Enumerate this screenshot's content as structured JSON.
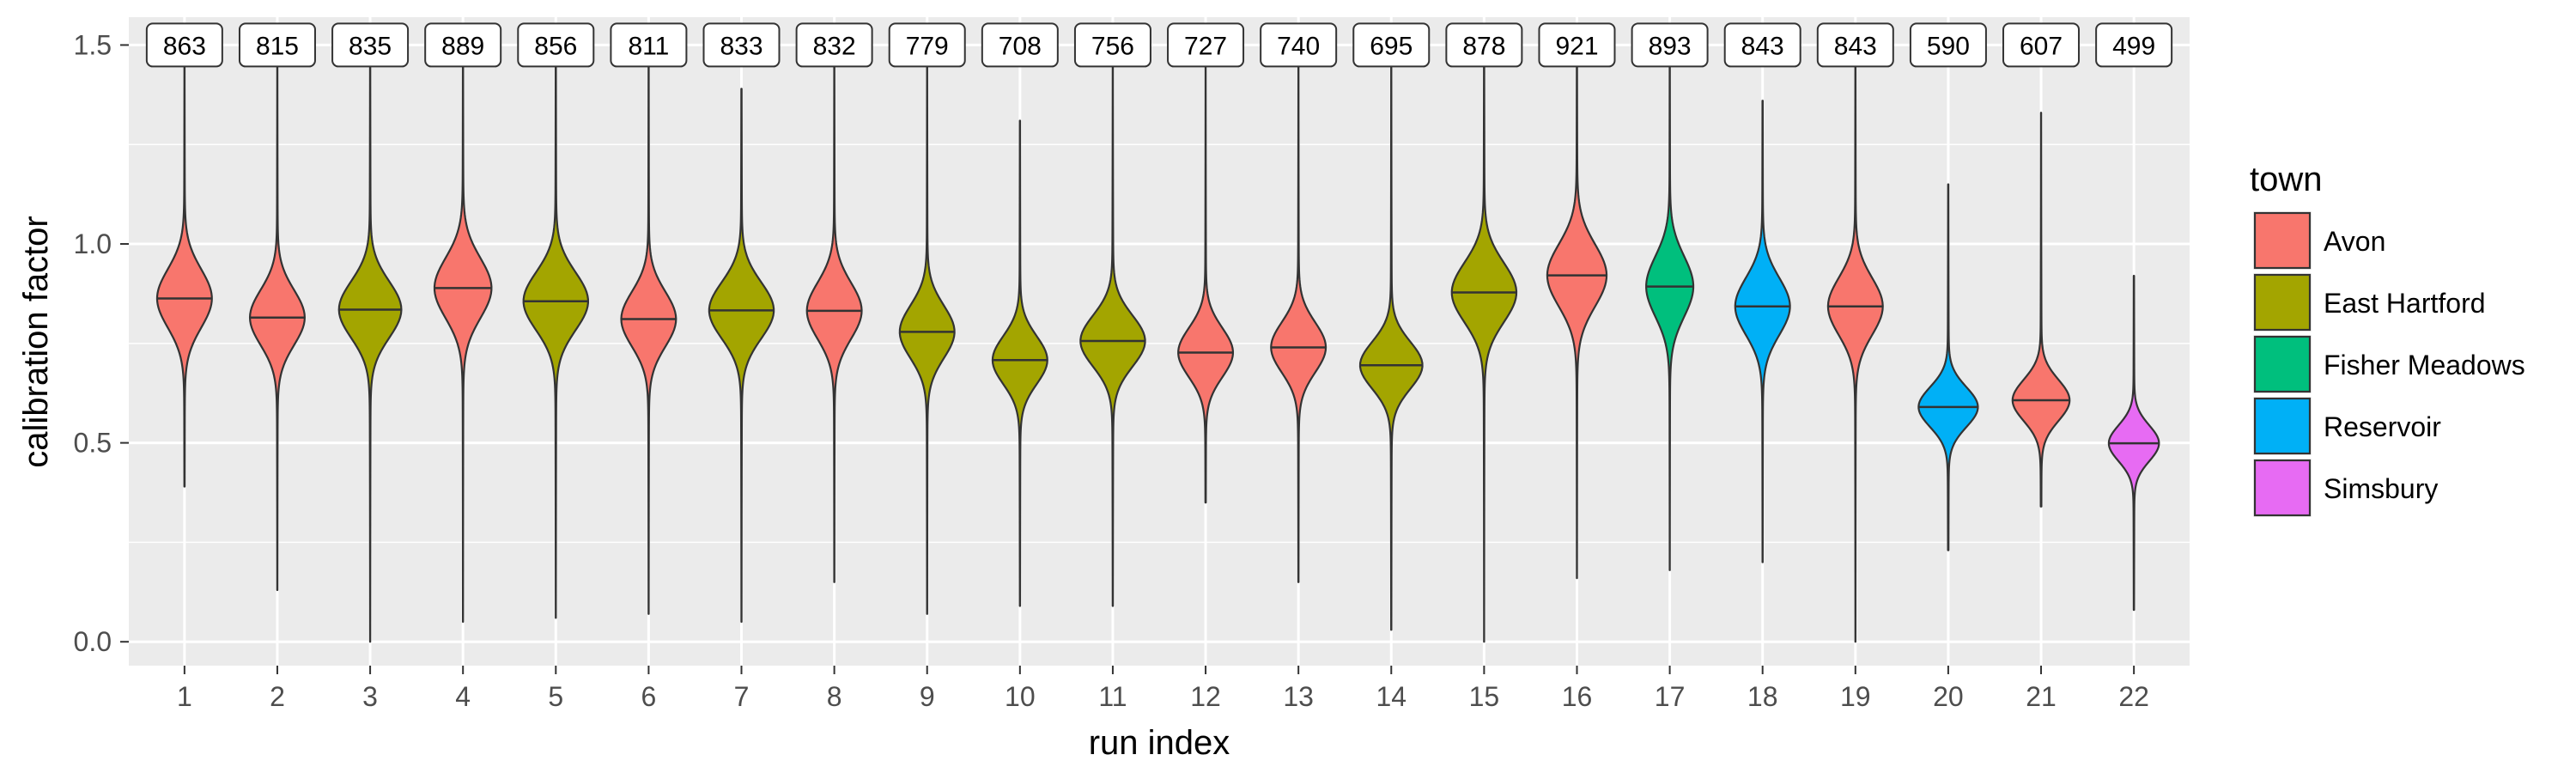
{
  "chart_data": {
    "type": "violin",
    "xlabel": "run index",
    "ylabel": "calibration factor",
    "ylim": [
      -0.06,
      1.57
    ],
    "yticks": [
      0.0,
      0.5,
      1.0,
      1.5
    ],
    "ytick_labels": [
      "0.0",
      "0.5",
      "1.0",
      "1.5"
    ],
    "grid": true,
    "legend": {
      "title": "town",
      "position": "right",
      "entries": [
        {
          "name": "Avon",
          "color": "#F8766D"
        },
        {
          "name": "East Hartford",
          "color": "#A3A500"
        },
        {
          "name": "Fisher Meadows",
          "color": "#00BF7D"
        },
        {
          "name": "Reservoir",
          "color": "#00B0F6"
        },
        {
          "name": "Simsbury",
          "color": "#E76BF3"
        }
      ]
    },
    "runs": [
      {
        "x": "1",
        "town": "Avon",
        "label": "863",
        "median": 0.863,
        "min": 0.39,
        "max": 1.5,
        "width": 0.72
      },
      {
        "x": "2",
        "town": "Avon",
        "label": "815",
        "median": 0.815,
        "min": 0.13,
        "max": 1.5,
        "width": 0.72
      },
      {
        "x": "3",
        "town": "East Hartford",
        "label": "835",
        "median": 0.835,
        "min": 0.0,
        "max": 1.5,
        "width": 0.82
      },
      {
        "x": "4",
        "town": "Avon",
        "label": "889",
        "median": 0.889,
        "min": 0.05,
        "max": 1.5,
        "width": 0.75
      },
      {
        "x": "5",
        "town": "East Hartford",
        "label": "856",
        "median": 0.856,
        "min": 0.06,
        "max": 1.5,
        "width": 0.85
      },
      {
        "x": "6",
        "town": "Avon",
        "label": "811",
        "median": 0.811,
        "min": 0.07,
        "max": 1.5,
        "width": 0.72
      },
      {
        "x": "7",
        "town": "East Hartford",
        "label": "833",
        "median": 0.833,
        "min": 0.05,
        "max": 1.39,
        "width": 0.85
      },
      {
        "x": "8",
        "town": "Avon",
        "label": "832",
        "median": 0.832,
        "min": 0.15,
        "max": 1.5,
        "width": 0.72
      },
      {
        "x": "9",
        "town": "East Hartford",
        "label": "779",
        "median": 0.779,
        "min": 0.07,
        "max": 1.5,
        "width": 0.72
      },
      {
        "x": "10",
        "town": "East Hartford",
        "label": "708",
        "median": 0.708,
        "min": 0.09,
        "max": 1.31,
        "width": 0.72
      },
      {
        "x": "11",
        "town": "East Hartford",
        "label": "756",
        "median": 0.756,
        "min": 0.09,
        "max": 1.5,
        "width": 0.85
      },
      {
        "x": "12",
        "town": "Avon",
        "label": "727",
        "median": 0.727,
        "min": 0.35,
        "max": 1.5,
        "width": 0.72
      },
      {
        "x": "13",
        "town": "Avon",
        "label": "740",
        "median": 0.74,
        "min": 0.15,
        "max": 1.5,
        "width": 0.72
      },
      {
        "x": "14",
        "town": "East Hartford",
        "label": "695",
        "median": 0.695,
        "min": 0.03,
        "max": 1.5,
        "width": 0.82
      },
      {
        "x": "15",
        "town": "East Hartford",
        "label": "878",
        "median": 0.878,
        "min": 0.0,
        "max": 1.5,
        "width": 0.85
      },
      {
        "x": "16",
        "town": "Avon",
        "label": "921",
        "median": 0.921,
        "min": 0.16,
        "max": 1.5,
        "width": 0.78
      },
      {
        "x": "17",
        "town": "Fisher Meadows",
        "label": "893",
        "median": 0.893,
        "min": 0.18,
        "max": 1.5,
        "width": 0.62
      },
      {
        "x": "18",
        "town": "Reservoir",
        "label": "843",
        "median": 0.843,
        "min": 0.2,
        "max": 1.36,
        "width": 0.72
      },
      {
        "x": "19",
        "town": "Avon",
        "label": "843",
        "median": 0.843,
        "min": 0.0,
        "max": 1.5,
        "width": 0.72
      },
      {
        "x": "20",
        "town": "Reservoir",
        "label": "590",
        "median": 0.59,
        "min": 0.23,
        "max": 1.15,
        "width": 0.78
      },
      {
        "x": "21",
        "town": "Avon",
        "label": "607",
        "median": 0.607,
        "min": 0.34,
        "max": 1.33,
        "width": 0.75
      },
      {
        "x": "22",
        "town": "Simsbury",
        "label": "499",
        "median": 0.499,
        "min": 0.08,
        "max": 0.92,
        "width": 0.66
      }
    ]
  }
}
